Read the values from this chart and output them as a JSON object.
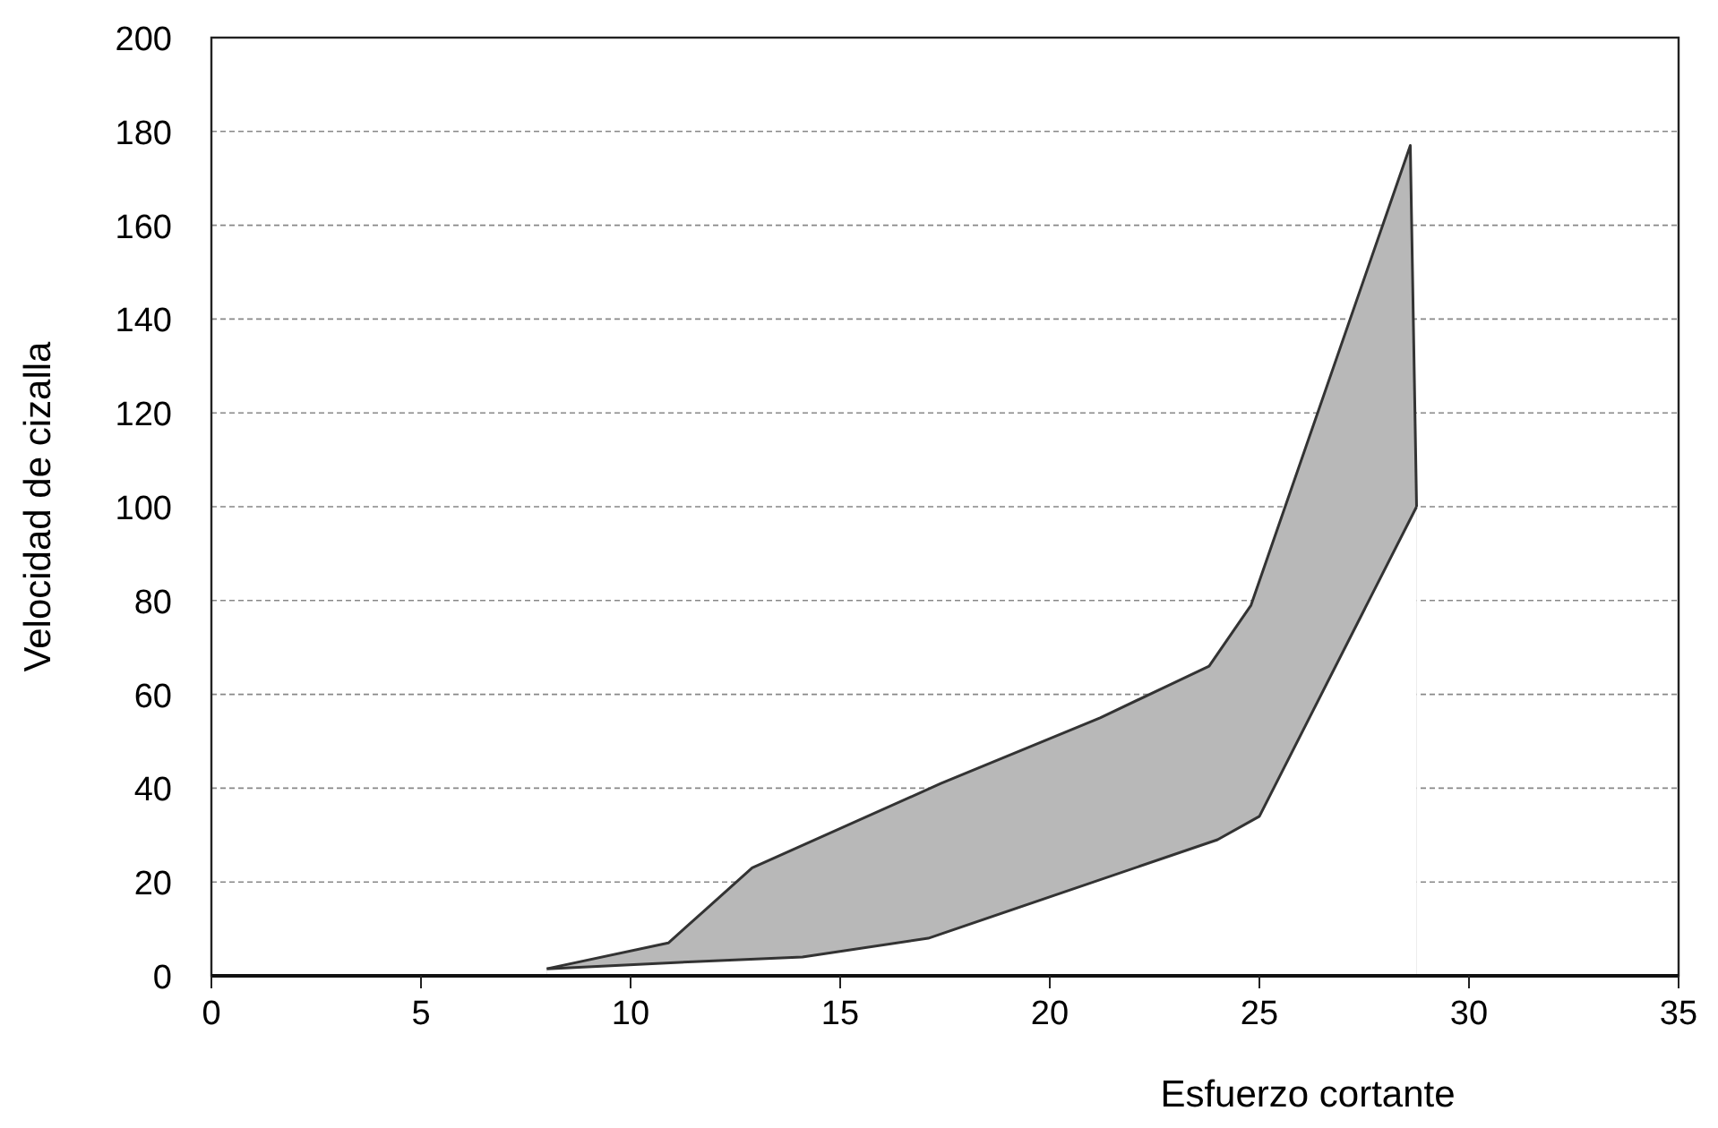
{
  "chart_data": {
    "type": "area",
    "xlabel": "Esfuerzo cortante",
    "ylabel": "Velocidad de cizalla",
    "xlim": [
      0,
      35
    ],
    "xticks": [
      0,
      5,
      10,
      15,
      20,
      25,
      30,
      35
    ],
    "ylim": [
      0,
      200
    ],
    "yticks": [
      0,
      20,
      40,
      60,
      80,
      100,
      120,
      140,
      160,
      180,
      200
    ],
    "grid": "y",
    "series": [
      {
        "color": "#b8b8b8",
        "x": [
          8,
          10.9,
          12.9,
          17.4,
          21.2,
          23.8,
          24.8,
          28.6,
          28.75
        ],
        "values": [
          1.5,
          7,
          23,
          41,
          55,
          66,
          79,
          177,
          100
        ]
      },
      {
        "color": "#ffffff",
        "x": [
          8,
          11.5,
          14.1,
          17.1,
          24,
          25,
          28.75
        ],
        "values": [
          1.5,
          3,
          4,
          8,
          29,
          34,
          100
        ]
      }
    ]
  }
}
